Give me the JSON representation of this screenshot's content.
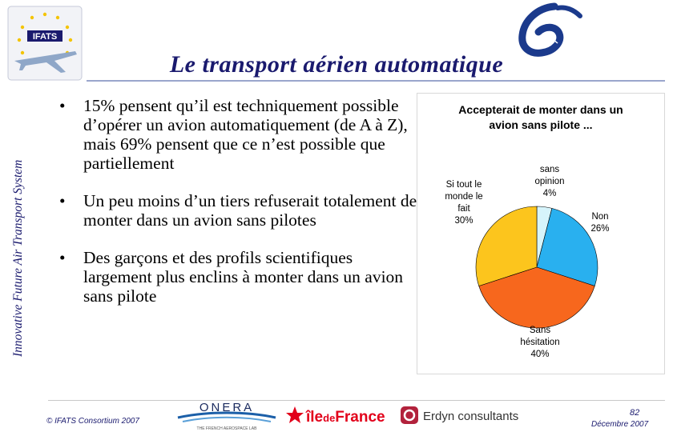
{
  "sidebar": {
    "text": "Innovative Future Air Transport System"
  },
  "header": {
    "logo_text": "IFATS",
    "title": "Le transport aérien automatique"
  },
  "bullets": [
    {
      "text": "15% pensent qu’il est techniquement possible d’opérer un avion automatiquement (de A à Z), mais 69% pensent que ce n’est possible que partiellement"
    },
    {
      "text": "Un peu moins d’un tiers refuserait totalement de monter dans un avion sans pilotes"
    },
    {
      "text": "Des garçons et des profils scientifiques largement plus enclins à monter dans un avion sans pilote"
    }
  ],
  "bullet_glyph": "•",
  "chart_data": {
    "type": "pie",
    "title_lines": [
      "Accepterait de monter dans un",
      "avion sans pilote ..."
    ],
    "slices": [
      {
        "label_lines": [
          "sans",
          "opinion"
        ],
        "value": 4,
        "value_label": "4%",
        "color": "#d6f4fb"
      },
      {
        "label_lines": [
          "Non"
        ],
        "value": 26,
        "value_label": "26%",
        "color": "#29b0ef"
      },
      {
        "label_lines": [
          "Sans",
          "hésitation"
        ],
        "value": 40,
        "value_label": "40%",
        "color": "#f7671d"
      },
      {
        "label_lines": [
          "Si tout le",
          "monde le",
          "fait"
        ],
        "value": 30,
        "value_label": "30%",
        "color": "#fcc51d"
      }
    ]
  },
  "footer": {
    "copyright": "© IFATS Consortium 2007",
    "page_number": "82",
    "date": "Décembre 2007",
    "logos": {
      "onera": "ONERA",
      "onera_sub": "THE FRENCH AEROSPACE LAB",
      "idf_prefix": "île",
      "idf_de": "de",
      "idf_suffix": "France",
      "erdyn": "Erdyn consultants"
    }
  }
}
